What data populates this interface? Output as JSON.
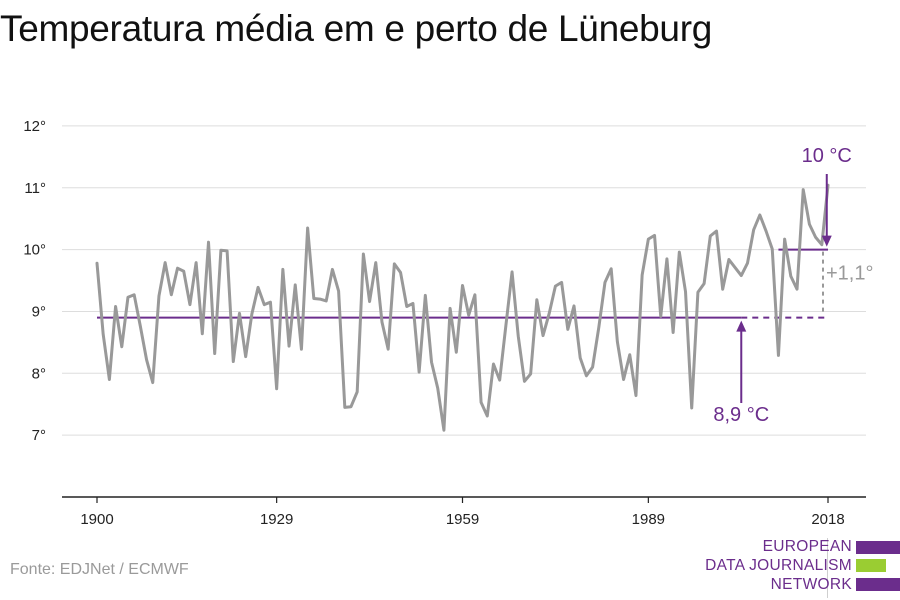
{
  "header": {
    "title": "Temperatura média em e perto de Lüneburg"
  },
  "source": "Fonte: EDJNet / ECMWF",
  "logo": {
    "lines": [
      "EUROPEAN",
      "DATA JOURNALISM",
      "NETWORK"
    ],
    "colors": {
      "text": "#6b2d8c",
      "bar_primary": "#6b2d8c",
      "bar_accent": "#9acd32"
    }
  },
  "chart_data": {
    "type": "line",
    "title": "Temperatura média em e perto de Lüneburg",
    "xlabel": "",
    "ylabel": "",
    "xlim": [
      1900,
      2018
    ],
    "ylim": [
      6,
      12.5
    ],
    "x_ticks": [
      1900,
      1929,
      1959,
      1989,
      2018
    ],
    "y_ticks": [
      7,
      8,
      9,
      10,
      11,
      12
    ],
    "y_tick_labels": [
      "7°",
      "8°",
      "9°",
      "10°",
      "11°",
      "12°"
    ],
    "grid": true,
    "series": [
      {
        "color": "#999999",
        "x": [
          1900,
          1901,
          1902,
          1903,
          1904,
          1905,
          1906,
          1907,
          1908,
          1909,
          1910,
          1911,
          1912,
          1913,
          1914,
          1915,
          1916,
          1917,
          1918,
          1919,
          1920,
          1921,
          1922,
          1923,
          1924,
          1925,
          1926,
          1927,
          1928,
          1929,
          1930,
          1931,
          1932,
          1933,
          1934,
          1935,
          1936,
          1937,
          1938,
          1939,
          1940,
          1941,
          1942,
          1943,
          1944,
          1945,
          1946,
          1947,
          1948,
          1949,
          1950,
          1951,
          1952,
          1953,
          1954,
          1955,
          1956,
          1957,
          1958,
          1959,
          1960,
          1961,
          1962,
          1963,
          1964,
          1965,
          1966,
          1967,
          1968,
          1969,
          1970,
          1971,
          1972,
          1973,
          1974,
          1975,
          1976,
          1977,
          1978,
          1979,
          1980,
          1981,
          1982,
          1983,
          1984,
          1985,
          1986,
          1987,
          1988,
          1989,
          1990,
          1991,
          1992,
          1993,
          1994,
          1995,
          1996,
          1997,
          1998,
          1999,
          2000,
          2001,
          2002,
          2003,
          2004,
          2005,
          2006,
          2007,
          2008,
          2009,
          2010,
          2011,
          2012,
          2013,
          2014,
          2015,
          2016,
          2017,
          2018
        ],
        "values": [
          9.78,
          8.63,
          7.9,
          9.08,
          8.43,
          9.23,
          9.27,
          8.76,
          8.22,
          7.85,
          9.25,
          9.79,
          9.27,
          9.7,
          9.65,
          9.11,
          9.79,
          8.64,
          10.12,
          8.32,
          9.99,
          9.98,
          8.19,
          8.97,
          8.27,
          8.96,
          9.39,
          9.11,
          9.15,
          7.75,
          9.68,
          8.44,
          9.43,
          8.39,
          10.35,
          9.21,
          9.2,
          9.17,
          9.68,
          9.33,
          7.45,
          7.46,
          7.7,
          9.93,
          9.16,
          9.79,
          8.83,
          8.39,
          9.77,
          9.63,
          9.08,
          9.13,
          8.02,
          9.26,
          8.18,
          7.76,
          7.08,
          9.05,
          8.34,
          9.42,
          8.94,
          9.27,
          7.53,
          7.31,
          8.15,
          7.89,
          8.77,
          9.64,
          8.6,
          7.87,
          7.99,
          9.19,
          8.61,
          8.97,
          9.41,
          9.47,
          8.71,
          9.09,
          8.25,
          7.96,
          8.1,
          8.74,
          9.47,
          9.69,
          8.51,
          7.9,
          8.3,
          7.64,
          9.59,
          10.17,
          10.23,
          8.92,
          9.85,
          8.66,
          9.96,
          9.32,
          7.44,
          9.31,
          9.45,
          10.22,
          10.3,
          9.36,
          9.84,
          9.71,
          9.58,
          9.78,
          10.32,
          10.56,
          10.3,
          10.01,
          8.29,
          10.17,
          9.57,
          9.36,
          10.97,
          10.41,
          10.2,
          10.08,
          11.04
        ]
      }
    ],
    "reference_lines": [
      {
        "label": "8,9 °C",
        "value": 8.9,
        "from": 1900,
        "to": 2018,
        "dashed_from": 2004,
        "color": "#6b2d8c"
      },
      {
        "label": "10 °C",
        "value": 10.0,
        "from": 2010,
        "to": 2018,
        "color": "#6b2d8c"
      }
    ],
    "difference_label": "+1,1°"
  }
}
